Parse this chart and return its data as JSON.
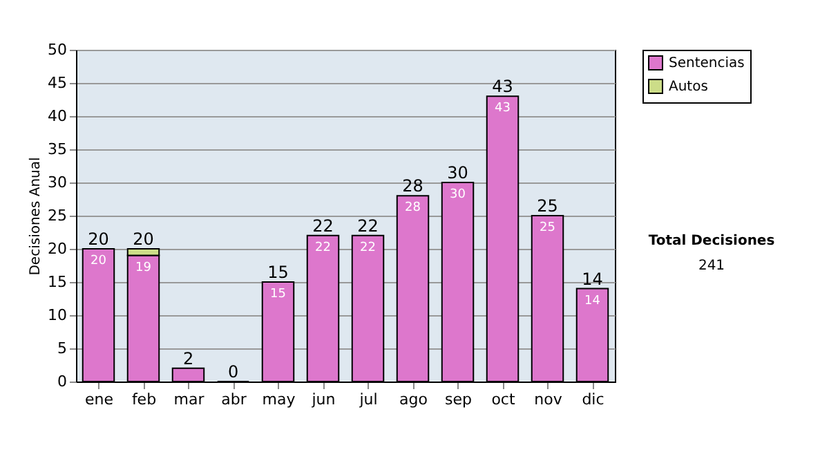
{
  "chart_data": {
    "type": "bar",
    "stacked": true,
    "ylabel": "Decisiones Anual",
    "categories": [
      "ene",
      "feb",
      "mar",
      "abr",
      "may",
      "jun",
      "jul",
      "ago",
      "sep",
      "oct",
      "nov",
      "dic"
    ],
    "series": [
      {
        "name": "Sentencias",
        "color": "#dd77cc",
        "values": [
          20,
          19,
          2,
          0,
          15,
          22,
          22,
          28,
          30,
          43,
          25,
          14
        ],
        "value_labels": [
          "20",
          "19",
          null,
          null,
          "15",
          "22",
          "22",
          "28",
          "30",
          "43",
          "25",
          "14"
        ]
      },
      {
        "name": "Autos",
        "color": "#ccdd88",
        "values": [
          null,
          1,
          null,
          null,
          null,
          null,
          null,
          null,
          null,
          null,
          null,
          null
        ]
      }
    ],
    "totals": [
      "20",
      "20",
      "2",
      "0",
      "15",
      "22",
      "22",
      "28",
      "30",
      "43",
      "25",
      "14"
    ],
    "ylim": [
      0,
      50
    ],
    "yticks": [
      0,
      5,
      10,
      15,
      20,
      25,
      30,
      35,
      40,
      45,
      50
    ],
    "grid": "y",
    "legend": "right",
    "annotations": [
      "Total Decisiones",
      "241"
    ]
  }
}
